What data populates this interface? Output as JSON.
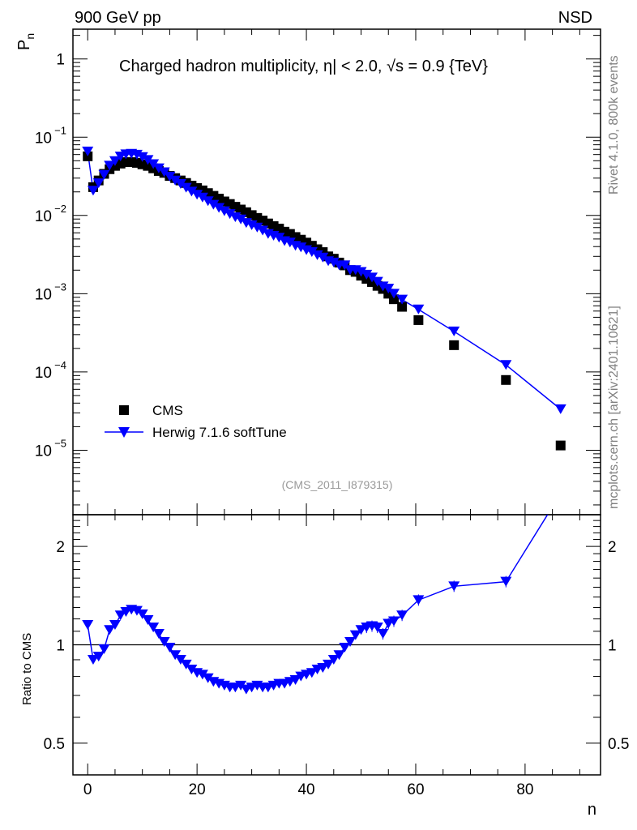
{
  "header": {
    "left": "900 GeV pp",
    "right": "NSD"
  },
  "side_texts": {
    "rivet": "Rivet 4.1.0,  800k events",
    "mcplots": "mcplots.cern.ch [arXiv:2401.10621]"
  },
  "analysis_id": "(CMS_2011_I879315)",
  "colors": {
    "cms": "#000000",
    "herwig": "#0000ff"
  },
  "chart_data": [
    {
      "type": "scatter",
      "title": "Charged hadron multiplicity, η| < 2.0, √s = 0.9 {TeV}",
      "ylabel": "P",
      "ylabel_sub": "n",
      "yscale": "log",
      "ylim": [
        1.5e-06,
        2.4
      ],
      "xlim": [
        -2.7,
        93.8
      ],
      "ytick_labels": [
        {
          "base": "1",
          "exp": ""
        },
        {
          "base": "10",
          "exp": "−1"
        },
        {
          "base": "10",
          "exp": "−2"
        },
        {
          "base": "10",
          "exp": "−3"
        },
        {
          "base": "10",
          "exp": "−4"
        },
        {
          "base": "10",
          "exp": "−5"
        }
      ],
      "ytick_values": [
        1,
        0.1,
        0.01,
        0.001,
        0.0001,
        1e-05
      ],
      "legend": {
        "placement": "bottom-left",
        "entries": [
          "CMS",
          "Herwig 7.1.6 softTune"
        ]
      },
      "x": [
        0,
        1,
        2,
        3,
        4,
        5,
        6,
        7,
        8,
        9,
        10,
        11,
        12,
        13,
        14,
        15,
        16,
        17,
        18,
        19,
        20,
        21,
        22,
        23,
        24,
        25,
        26,
        27,
        28,
        29,
        30,
        31,
        32,
        33,
        34,
        35,
        36,
        37,
        38,
        39,
        40,
        41,
        42,
        43,
        44,
        45,
        46,
        47,
        48,
        49,
        50,
        51,
        52,
        53,
        54,
        55,
        56,
        57.5,
        60.5,
        67,
        76.5,
        86.5
      ],
      "series": [
        {
          "name": "CMS",
          "values": [
            0.057,
            0.023,
            0.028,
            0.034,
            0.039,
            0.043,
            0.046,
            0.048,
            0.048,
            0.047,
            0.045,
            0.043,
            0.04,
            0.037,
            0.035,
            0.032,
            0.03,
            0.028,
            0.026,
            0.024,
            0.0224,
            0.0209,
            0.0193,
            0.0178,
            0.0164,
            0.0151,
            0.014,
            0.0129,
            0.0119,
            0.011,
            0.0101,
            0.0093,
            0.0086,
            0.0079,
            0.0073,
            0.0068,
            0.0062,
            0.0058,
            0.0053,
            0.0049,
            0.0045,
            0.0041,
            0.0037,
            0.0034,
            0.003,
            0.0028,
            0.0025,
            0.0023,
            0.002,
            0.0019,
            0.0017,
            0.00155,
            0.00141,
            0.00126,
            0.00115,
            0.001,
            0.00085,
            0.00068,
            0.00046,
            0.00022,
            7.9e-05,
            1.15e-05
          ]
        },
        {
          "name": "Herwig 7.1.6 softTune",
          "values": [
            0.0656,
            0.0207,
            0.0258,
            0.033,
            0.0433,
            0.0495,
            0.0566,
            0.0605,
            0.0614,
            0.0597,
            0.0558,
            0.0512,
            0.0452,
            0.04,
            0.0357,
            0.0314,
            0.0279,
            0.0252,
            0.0226,
            0.0202,
            0.0184,
            0.0169,
            0.0152,
            0.0137,
            0.0125,
            0.0113,
            0.0104,
            0.0095,
            0.0089,
            0.008,
            0.0075,
            0.007,
            0.0064,
            0.0058,
            0.0055,
            0.0052,
            0.0047,
            0.0045,
            0.0041,
            0.0039,
            0.0036,
            0.0034,
            0.0031,
            0.0029,
            0.0026,
            0.0025,
            0.0023,
            0.0023,
            0.002,
            0.002,
            0.0019,
            0.00175,
            0.00161,
            0.00142,
            0.00124,
            0.00116,
            0.001,
            0.00084,
            0.00063,
            0.00033,
            0.000123,
            3.34e-05
          ]
        }
      ]
    },
    {
      "type": "line",
      "xlabel": "n",
      "ylabel": "Ratio to CMS",
      "yscale": "log",
      "ylim": [
        0.4,
        2.5
      ],
      "xlim": [
        -2.7,
        93.8
      ],
      "xtick_labels": [
        "0",
        "20",
        "40",
        "60",
        "80"
      ],
      "xtick_values": [
        0,
        20,
        40,
        60,
        80
      ],
      "ytick_labels": [
        "0.5",
        "1",
        "2"
      ],
      "ytick_values": [
        0.5,
        1,
        2
      ],
      "reference_line": 1,
      "series": [
        {
          "name": "Herwig 7.1.6 softTune / CMS",
          "values": [
            1.15,
            0.9,
            0.92,
            0.97,
            1.11,
            1.15,
            1.23,
            1.26,
            1.28,
            1.27,
            1.24,
            1.19,
            1.13,
            1.08,
            1.02,
            0.98,
            0.93,
            0.9,
            0.87,
            0.84,
            0.82,
            0.81,
            0.79,
            0.77,
            0.76,
            0.75,
            0.74,
            0.74,
            0.75,
            0.73,
            0.74,
            0.75,
            0.74,
            0.74,
            0.75,
            0.76,
            0.76,
            0.77,
            0.78,
            0.8,
            0.81,
            0.82,
            0.84,
            0.85,
            0.87,
            0.9,
            0.93,
            0.98,
            1.02,
            1.07,
            1.11,
            1.13,
            1.14,
            1.13,
            1.08,
            1.16,
            1.18,
            1.23,
            1.37,
            1.51,
            1.56,
            2.9
          ]
        }
      ]
    }
  ]
}
